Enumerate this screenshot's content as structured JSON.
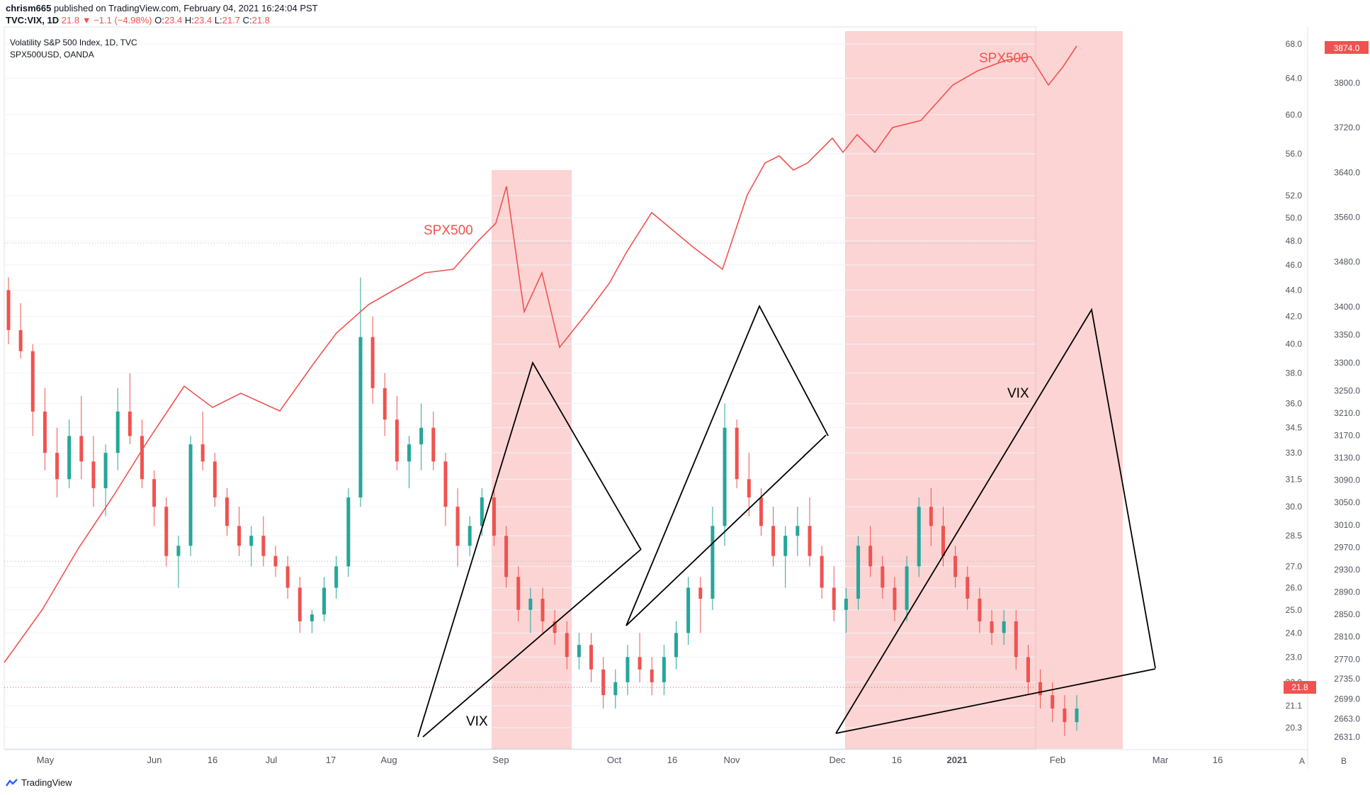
{
  "header": {
    "author": "chrism665",
    "published_text": "published on TradingView.com, February 04, 2021 16:24:04 PST",
    "symbol": "TVC:VIX, 1D",
    "last": "21.8",
    "change_arrow": "▼",
    "change": "−1.1 (−4.98%)",
    "o_label": "O:",
    "o_value": "23.4",
    "h_label": "H:",
    "h_value": "23.4",
    "l_label": "L:",
    "l_value": "21.7",
    "c_label": "C:",
    "c_value": "21.8"
  },
  "legend": {
    "main_series": "Volatility S&P 500 Index, 1D, TVC",
    "overlay_series": "SPX500USD, OANDA"
  },
  "footer": {
    "brand": "TradingView",
    "logo_icon": "tradingview-logo-icon"
  },
  "colors": {
    "up": "#26a69a",
    "down": "#ef5350",
    "spx": "#ef5350",
    "highlight": "rgba(239,83,80,0.25)",
    "grid": "#f0f3fa",
    "axis_text": "#50535e"
  },
  "chart_data": {
    "type": "candlestick",
    "title": "Volatility S&P 500 Index, 1D, TVC",
    "x_tick_labels": [
      "May",
      "Jun",
      "16",
      "Jul",
      "17",
      "Aug",
      "Sep",
      "Oct",
      "16",
      "Nov",
      "Dec",
      "16",
      "2021",
      "Feb",
      "Mar",
      "16"
    ],
    "right_axis_vix": {
      "scale": "log",
      "ticks": [
        "68.0",
        "64.0",
        "60.0",
        "56.0",
        "52.0",
        "50.0",
        "48.0",
        "46.0",
        "44.0",
        "42.0",
        "40.0",
        "38.0",
        "36.0",
        "34.5",
        "33.0",
        "31.5",
        "30.0",
        "28.5",
        "27.0",
        "26.0",
        "25.0",
        "24.0",
        "23.0",
        "22.0",
        "21.1",
        "20.3"
      ],
      "last_price_label": "21.8"
    },
    "left_axis_spx": {
      "ticks": [
        "3800.0",
        "3720.0",
        "3640.0",
        "3560.0",
        "3480.0",
        "3400.0",
        "3350.0",
        "3300.0",
        "3250.0",
        "3210.0",
        "3170.0",
        "3130.0",
        "3090.0",
        "3050.0",
        "3010.0",
        "2970.0",
        "2930.0",
        "2890.0",
        "2850.0",
        "2810.0",
        "2770.0",
        "2735.0",
        "2699.0",
        "2663.0",
        "2631.0"
      ],
      "last_price_label": "3874.0"
    },
    "axis_buttons": [
      "A",
      "B"
    ],
    "annotations": [
      {
        "text": "SPX500",
        "kind": "label"
      },
      {
        "text": "SPX500",
        "kind": "label"
      },
      {
        "text": "VIX",
        "kind": "label"
      },
      {
        "text": "VIX",
        "kind": "label"
      }
    ],
    "highlight_periods": [
      {
        "from": "2020-08-31",
        "to": "2020-09-23"
      },
      {
        "from": "2020-11-30",
        "to": "2021-02-19"
      }
    ],
    "vix_ohlc_approx": [
      [
        44.0,
        45.0,
        40.0,
        41.0
      ],
      [
        41.0,
        43.0,
        39.0,
        39.5
      ],
      [
        39.5,
        40.0,
        34.0,
        35.5
      ],
      [
        35.5,
        37.0,
        32.0,
        33.0
      ],
      [
        33.0,
        34.5,
        30.5,
        31.5
      ],
      [
        31.5,
        35.0,
        31.0,
        34.0
      ],
      [
        34.0,
        36.5,
        31.5,
        32.5
      ],
      [
        32.5,
        34.0,
        30.0,
        31.0
      ],
      [
        31.0,
        33.5,
        29.5,
        33.0
      ],
      [
        33.0,
        37.0,
        32.0,
        35.5
      ],
      [
        35.5,
        38.0,
        33.5,
        34.0
      ],
      [
        34.0,
        35.0,
        31.0,
        31.5
      ],
      [
        31.5,
        32.0,
        29.0,
        30.0
      ],
      [
        30.0,
        30.5,
        27.0,
        27.5
      ],
      [
        27.5,
        28.5,
        26.0,
        28.0
      ],
      [
        28.0,
        34.0,
        27.5,
        33.5
      ],
      [
        33.5,
        35.5,
        32.0,
        32.5
      ],
      [
        32.5,
        33.0,
        30.0,
        30.5
      ],
      [
        30.5,
        31.0,
        28.5,
        29.0
      ],
      [
        29.0,
        30.0,
        27.5,
        28.0
      ],
      [
        28.0,
        29.0,
        27.0,
        28.5
      ],
      [
        28.5,
        29.5,
        27.0,
        27.5
      ],
      [
        27.5,
        28.0,
        26.5,
        27.0
      ],
      [
        27.0,
        27.5,
        25.5,
        26.0
      ],
      [
        26.0,
        26.5,
        24.0,
        24.5
      ],
      [
        24.5,
        25.0,
        24.0,
        24.8
      ],
      [
        24.8,
        26.5,
        24.5,
        26.0
      ],
      [
        26.0,
        27.5,
        25.5,
        27.0
      ],
      [
        27.0,
        31.0,
        26.5,
        30.5
      ],
      [
        30.5,
        45.0,
        30.0,
        40.5
      ],
      [
        40.5,
        42.0,
        36.0,
        37.0
      ],
      [
        37.0,
        38.0,
        34.0,
        35.0
      ],
      [
        35.0,
        36.5,
        32.0,
        32.5
      ],
      [
        32.5,
        34.0,
        31.0,
        33.5
      ],
      [
        33.5,
        36.0,
        32.0,
        34.5
      ],
      [
        34.5,
        35.5,
        32.0,
        32.5
      ],
      [
        32.5,
        33.0,
        29.0,
        30.0
      ],
      [
        30.0,
        31.0,
        27.0,
        28.0
      ],
      [
        28.0,
        29.5,
        27.5,
        29.0
      ],
      [
        29.0,
        31.0,
        28.5,
        30.5
      ],
      [
        30.5,
        31.0,
        28.0,
        28.5
      ],
      [
        28.5,
        29.0,
        26.0,
        26.5
      ],
      [
        26.5,
        27.0,
        24.5,
        25.0
      ],
      [
        25.0,
        26.0,
        24.0,
        25.5
      ],
      [
        25.5,
        26.0,
        24.0,
        24.5
      ],
      [
        24.5,
        25.0,
        23.5,
        24.0
      ],
      [
        24.0,
        24.5,
        22.5,
        23.0
      ],
      [
        23.0,
        24.0,
        22.5,
        23.5
      ],
      [
        23.5,
        24.0,
        22.0,
        22.5
      ],
      [
        22.5,
        23.0,
        21.0,
        21.5
      ],
      [
        21.5,
        22.5,
        21.0,
        22.0
      ],
      [
        22.0,
        23.5,
        21.5,
        23.0
      ],
      [
        23.0,
        24.0,
        22.0,
        22.5
      ],
      [
        22.5,
        23.0,
        21.5,
        22.0
      ],
      [
        22.0,
        23.5,
        21.5,
        23.0
      ],
      [
        23.0,
        24.5,
        22.5,
        24.0
      ],
      [
        24.0,
        26.5,
        23.5,
        26.0
      ],
      [
        26.0,
        26.5,
        24.0,
        25.5
      ],
      [
        25.5,
        30.0,
        25.0,
        29.0
      ],
      [
        29.0,
        36.0,
        28.0,
        34.5
      ],
      [
        34.5,
        35.0,
        31.0,
        31.5
      ],
      [
        31.5,
        33.0,
        29.5,
        30.5
      ],
      [
        30.5,
        31.0,
        28.5,
        29.0
      ],
      [
        29.0,
        30.0,
        27.0,
        27.5
      ],
      [
        27.5,
        29.0,
        26.0,
        28.5
      ],
      [
        28.5,
        30.0,
        27.5,
        29.0
      ],
      [
        29.0,
        30.5,
        27.0,
        27.5
      ],
      [
        27.5,
        28.0,
        25.5,
        26.0
      ],
      [
        26.0,
        27.0,
        24.5,
        25.0
      ],
      [
        25.0,
        26.0,
        24.0,
        25.5
      ],
      [
        25.5,
        28.5,
        25.0,
        28.0
      ],
      [
        28.0,
        29.0,
        26.5,
        27.0
      ],
      [
        27.0,
        27.5,
        25.5,
        26.0
      ],
      [
        26.0,
        26.5,
        24.5,
        25.0
      ],
      [
        25.0,
        27.5,
        24.5,
        27.0
      ],
      [
        27.0,
        30.5,
        26.5,
        30.0
      ],
      [
        30.0,
        31.0,
        28.0,
        29.0
      ],
      [
        29.0,
        30.0,
        27.0,
        27.5
      ],
      [
        27.5,
        28.0,
        26.0,
        26.5
      ],
      [
        26.5,
        27.0,
        25.0,
        25.5
      ],
      [
        25.5,
        26.0,
        24.0,
        24.5
      ],
      [
        24.5,
        25.0,
        23.5,
        24.0
      ],
      [
        24.0,
        25.0,
        23.5,
        24.5
      ],
      [
        24.5,
        25.0,
        22.5,
        23.0
      ],
      [
        23.0,
        23.5,
        21.5,
        22.0
      ],
      [
        22.0,
        22.5,
        21.0,
        21.5
      ],
      [
        21.5,
        22.0,
        20.5,
        21.0
      ],
      [
        21.0,
        21.5,
        20.0,
        20.5
      ],
      [
        20.5,
        21.5,
        20.2,
        21.0
      ]
    ]
  }
}
